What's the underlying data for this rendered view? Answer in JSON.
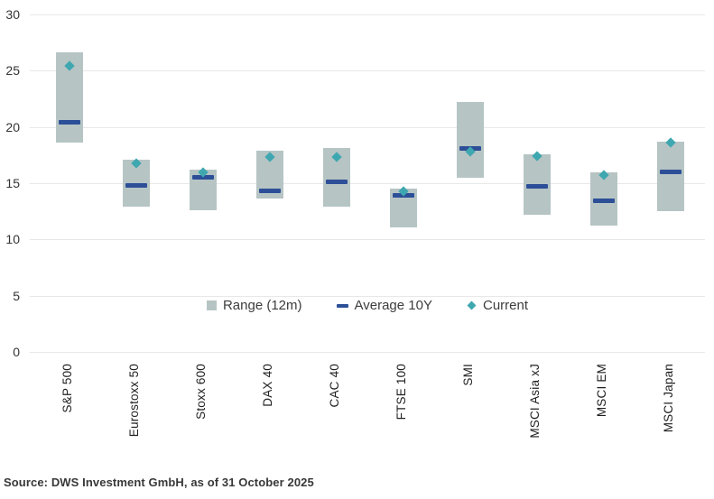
{
  "chart_data": {
    "type": "bar",
    "subtype": "range-bar-with-markers",
    "title": "",
    "xlabel": "",
    "ylabel": "",
    "ylim": [
      0,
      30
    ],
    "yticks": [
      0,
      5,
      10,
      15,
      20,
      25,
      30
    ],
    "grid": true,
    "legend_position": "bottom-center",
    "categories": [
      "S&P 500",
      "Eurostoxx 50",
      "Stoxx 600",
      "DAX 40",
      "CAC 40",
      "FTSE 100",
      "SMI",
      "MSCI Asia xJ",
      "MSCI EM",
      "MSCI Japan"
    ],
    "series": [
      {
        "name": "Range (12m)",
        "marker": "bar",
        "low": [
          18.6,
          12.9,
          12.6,
          13.6,
          12.9,
          11.1,
          15.5,
          12.2,
          11.2,
          12.5
        ],
        "high": [
          26.6,
          17.1,
          16.2,
          17.9,
          18.1,
          14.5,
          22.2,
          17.6,
          16.0,
          18.7
        ]
      },
      {
        "name": "Average 10Y",
        "marker": "dash",
        "values": [
          20.4,
          14.8,
          15.5,
          14.3,
          15.1,
          13.9,
          18.1,
          14.7,
          13.4,
          16.0
        ]
      },
      {
        "name": "Current",
        "marker": "diamond",
        "values": [
          25.4,
          16.8,
          16.0,
          17.3,
          17.3,
          14.3,
          17.8,
          17.4,
          15.7,
          18.6
        ]
      }
    ]
  },
  "legend": {
    "items": [
      {
        "label": "Range (12m)",
        "marker": "square"
      },
      {
        "label": "Average 10Y",
        "marker": "dash"
      },
      {
        "label": "Current",
        "marker": "diamond"
      }
    ]
  },
  "source_note": "Source: DWS Investment GmbH, as of 31 October 2025",
  "colors": {
    "range_bar": "#b6c4c4",
    "average": "#2c4f97",
    "current": "#3fa7b0",
    "grid": "#e8e8e8",
    "tick_text": "#333333",
    "category_text": "#1f1f1f",
    "legend_text": "#3d3d3d",
    "source_text": "#383838"
  }
}
